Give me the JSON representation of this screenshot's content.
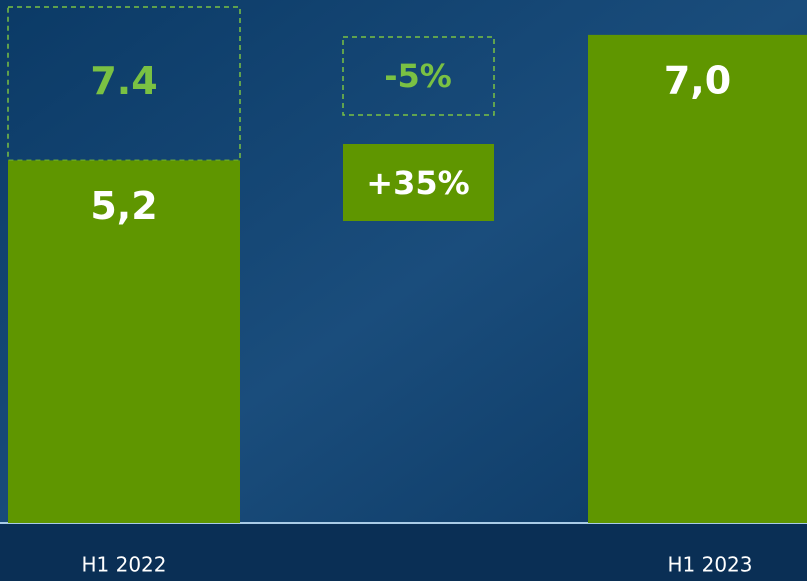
{
  "chart_data": {
    "type": "bar",
    "categories": [
      "H1 2022",
      "H1 2023"
    ],
    "values": [
      5.2,
      7.0
    ],
    "value_labels": [
      "5,2",
      "7,0"
    ],
    "color": "#5f9600",
    "reference_values": [
      7.4,
      null
    ],
    "reference_labels": [
      "7.4",
      null
    ],
    "reference_color": "#7ac143",
    "annotations": [
      "-5%",
      "+35%"
    ],
    "ylim": [
      0,
      7.5
    ]
  }
}
